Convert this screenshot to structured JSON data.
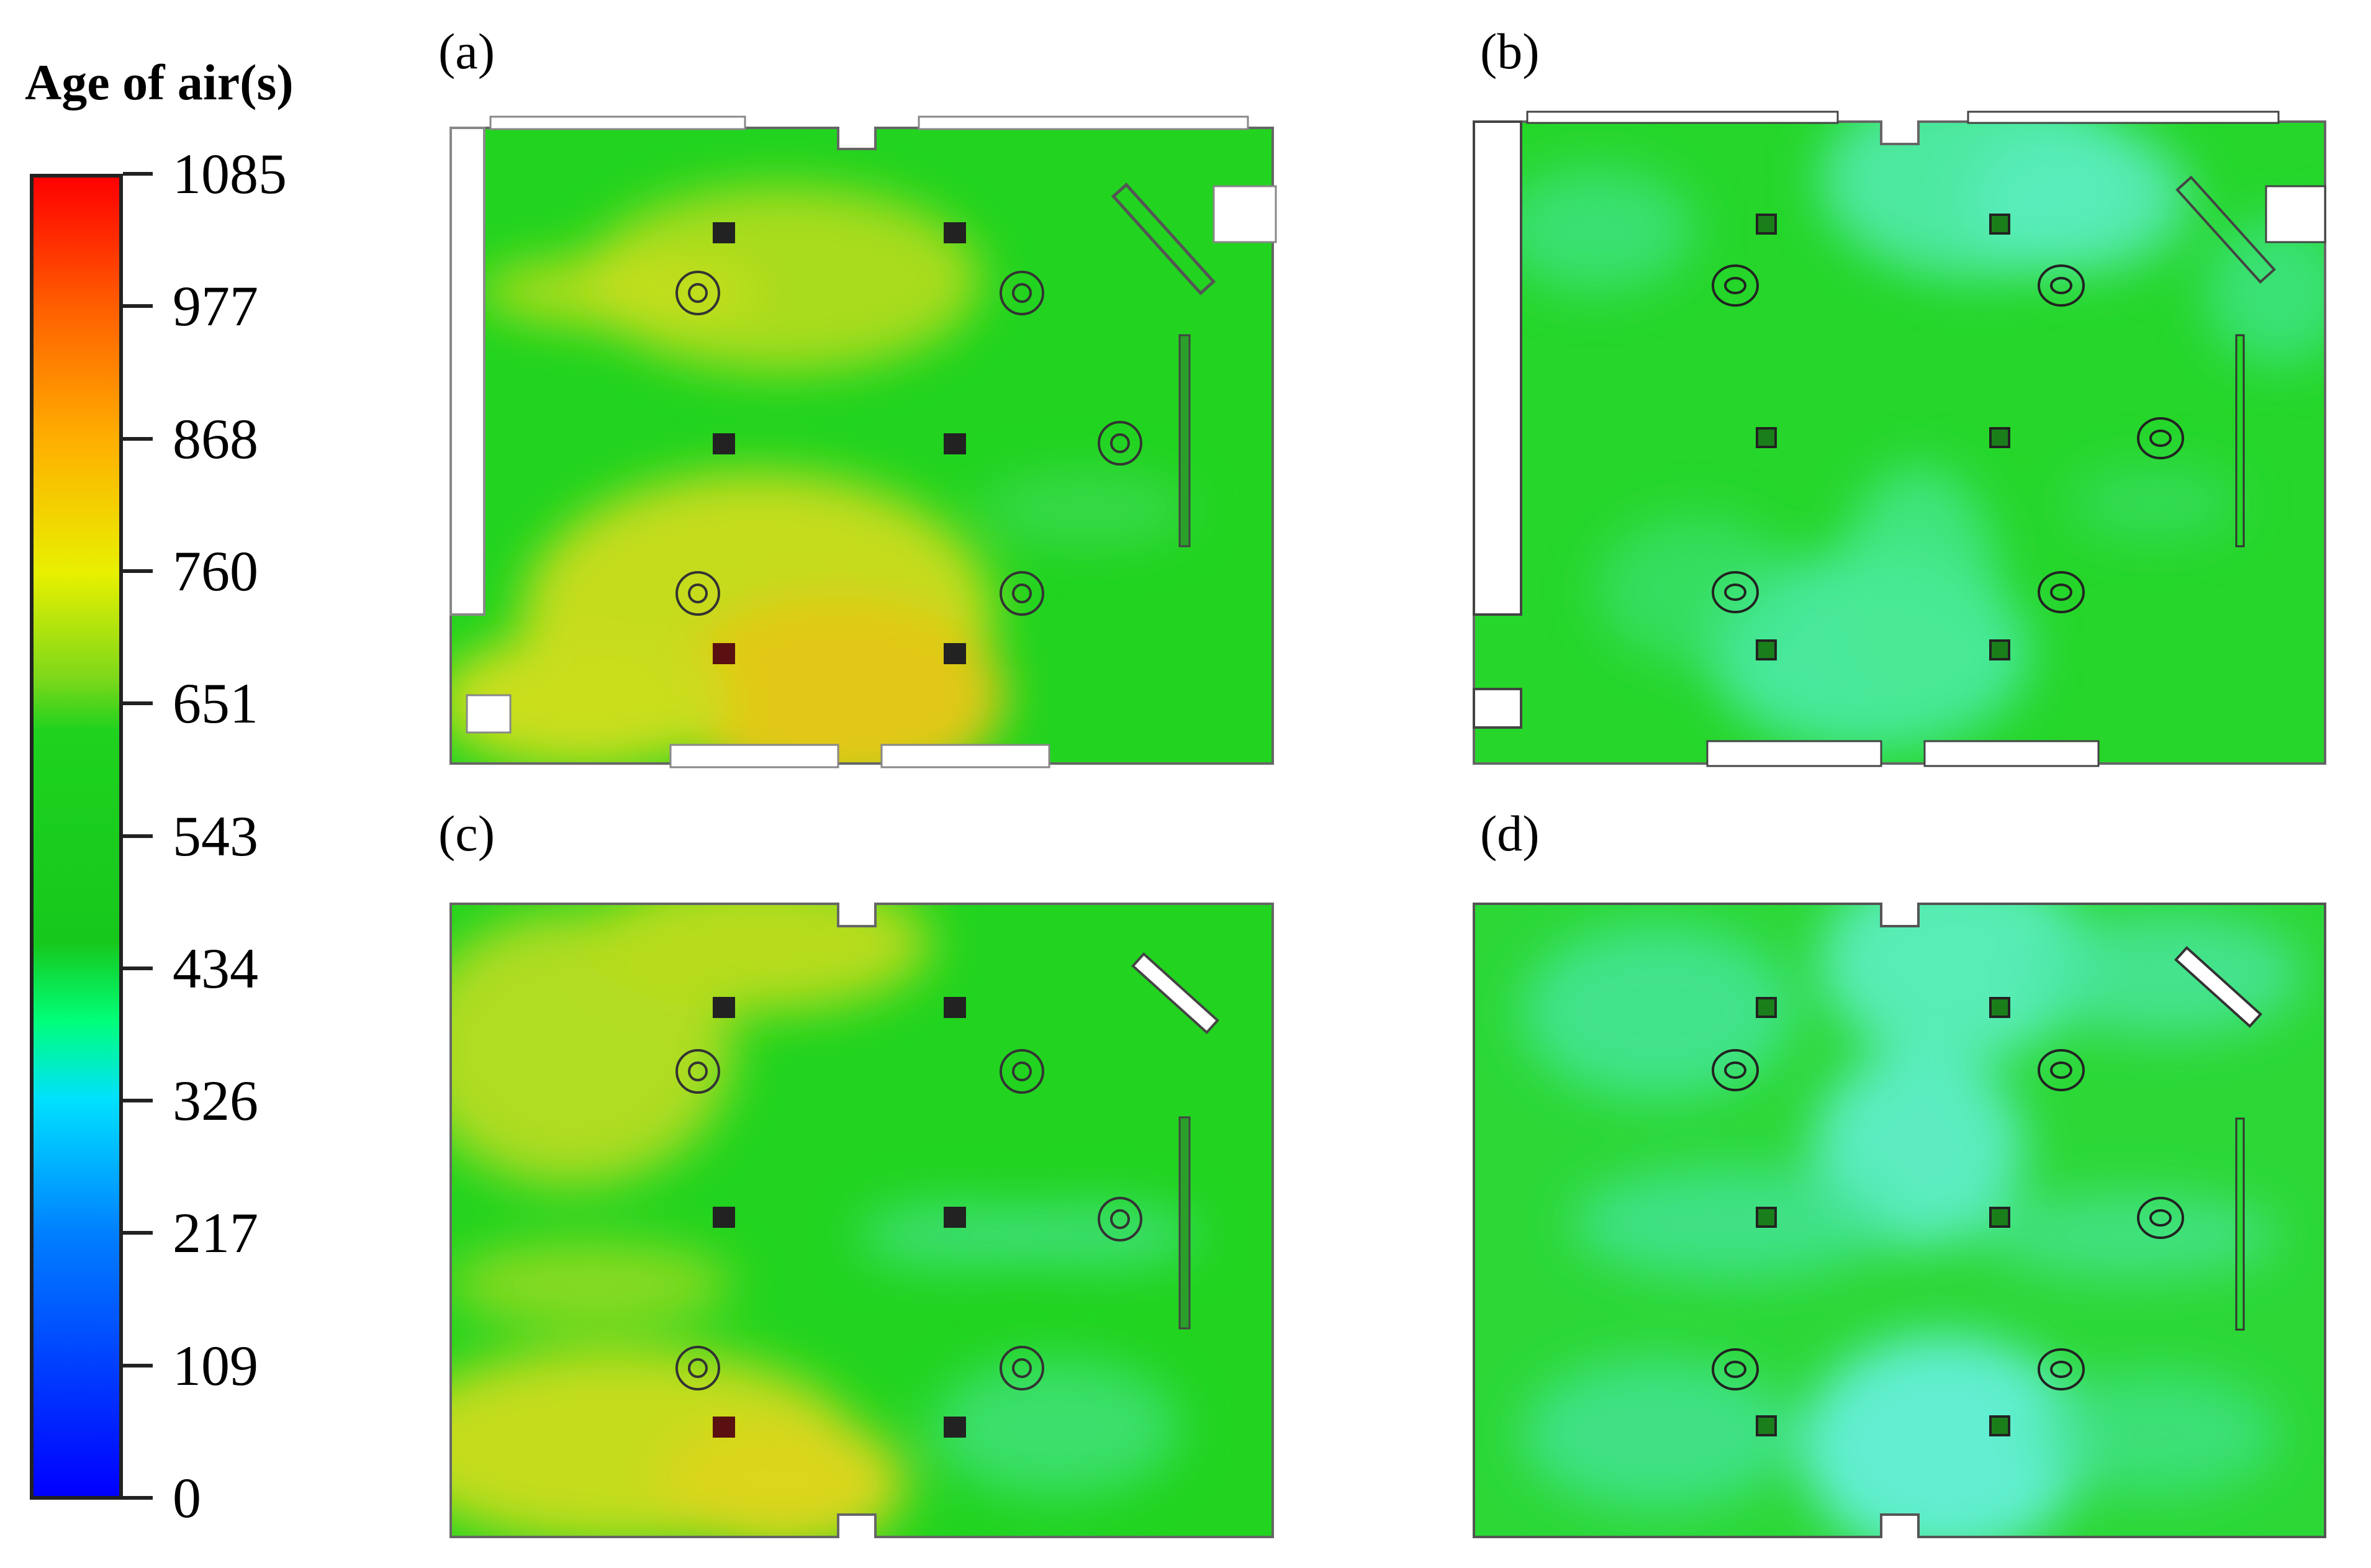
{
  "chart_data": {
    "type": "heatmap",
    "colorbar": {
      "title": "Age of air(s)",
      "ticks": [
        "1085",
        "977",
        "868",
        "760",
        "651",
        "543",
        "434",
        "326",
        "217",
        "109",
        "0"
      ],
      "min": 0,
      "max": 1085,
      "colors": [
        "#0000ff",
        "#0080ff",
        "#00e0ff",
        "#00ff7a",
        "#16c81c",
        "#1ed21e",
        "#7dd81a",
        "#e8f000",
        "#ffb000",
        "#ff6000",
        "#ff0000"
      ]
    },
    "panels": [
      {
        "label": "(a)",
        "base_color": "#22d420",
        "warm_color": "#c2de1a",
        "hot_color": "#e8c818"
      },
      {
        "label": "(b)",
        "base_color": "#26d62a",
        "cool_color": "#4ee8a0"
      },
      {
        "label": "(c)",
        "base_color": "#22d420",
        "warm_color": "#b4dc20",
        "hot_color": "#d8d820"
      },
      {
        "label": "(d)",
        "base_color": "#2cd836",
        "cool_color": "#58ecb6"
      }
    ]
  }
}
